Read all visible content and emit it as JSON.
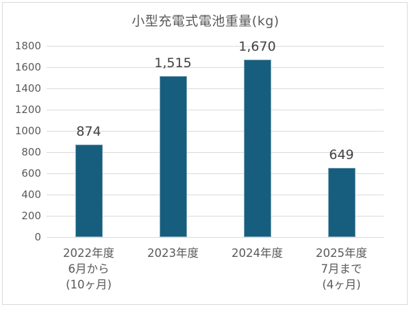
{
  "chart_data": {
    "type": "bar",
    "title": "小型充電式電池重量(kg)",
    "xlabel": "",
    "ylabel": "",
    "ylim": [
      0,
      1800
    ],
    "yticks": [
      0,
      200,
      400,
      600,
      800,
      1000,
      1200,
      1400,
      1600,
      1800
    ],
    "ytick_labels": [
      "0",
      "200",
      "400",
      "600",
      "800",
      "1000",
      "1200",
      "1400",
      "1600",
      "1800"
    ],
    "grid": true,
    "legend": null,
    "categories": [
      "2022年度\n6月から\n(10ヶ月)",
      "2023年度",
      "2024年度",
      "2025年度\n7月まで\n(4ヶ月)"
    ],
    "values": [
      874,
      1515,
      1670,
      649
    ],
    "data_labels": [
      "874",
      "1,515",
      "1,670",
      "649"
    ],
    "bar_color": "#175e7e"
  },
  "colors": {
    "bar": "#175e7e",
    "grid": "#d9d9d9",
    "text": "#595959",
    "border": "#d9d9d9"
  }
}
